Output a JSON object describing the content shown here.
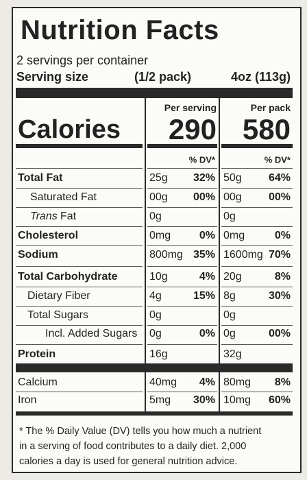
{
  "title": "Nutrition Facts",
  "servings": "2 servings per container",
  "serving_size": {
    "label": "Serving size",
    "portion": "(1/2 pack)",
    "amount": "4oz (113g)"
  },
  "columns": [
    "Per serving",
    "Per pack"
  ],
  "calories": {
    "label": "Calories",
    "values": [
      "290",
      "580"
    ]
  },
  "dv_header": [
    "% DV*",
    "% DV*"
  ],
  "nutrients": [
    {
      "name": "Total Fat",
      "serving": [
        "25g",
        "32%"
      ],
      "pack": [
        "50g",
        "64%"
      ]
    },
    {
      "name": "Saturated Fat",
      "serving": [
        "00g",
        "00%"
      ],
      "pack": [
        "00g",
        "00%"
      ]
    },
    {
      "name": [
        "Trans",
        "Fat"
      ],
      "serving": [
        "0g"
      ],
      "pack": [
        "0g"
      ]
    },
    {
      "name": "Cholesterol",
      "serving": [
        "0mg",
        "0%"
      ],
      "pack": [
        "0mg",
        "0%"
      ]
    },
    {
      "name": "Sodium",
      "serving": [
        "800mg",
        "35%"
      ],
      "pack": [
        "1600mg",
        "70%"
      ]
    },
    {
      "name": "Total Carbohydrate",
      "serving": [
        "10g",
        "4%"
      ],
      "pack": [
        "20g",
        "8%"
      ]
    },
    {
      "name": "Dietary Fiber",
      "serving": [
        "4g",
        "15%"
      ],
      "pack": [
        "8g",
        "30%"
      ]
    },
    {
      "name": "Total Sugars",
      "serving": [
        "0g"
      ],
      "pack": [
        "0g"
      ]
    },
    {
      "name": "Incl. Added Sugars",
      "serving": [
        "0g",
        "0%"
      ],
      "pack": [
        "0g",
        "00%"
      ]
    },
    {
      "name": "Protein",
      "serving": [
        "16g"
      ],
      "pack": [
        "32g"
      ]
    }
  ],
  "minerals": [
    {
      "name": "Calcium",
      "serving": [
        "40mg",
        "4%"
      ],
      "pack": [
        "80mg",
        "8%"
      ]
    },
    {
      "name": "Iron",
      "serving": [
        "5mg",
        "30%"
      ],
      "pack": [
        "10mg",
        "60%"
      ]
    }
  ],
  "footnote": [
    "* The % Daily Value (DV) tells you how much a nutrient",
    "in a serving of food contributes to a daily diet. 2,000",
    "calories a day is used for general nutrition advice."
  ]
}
